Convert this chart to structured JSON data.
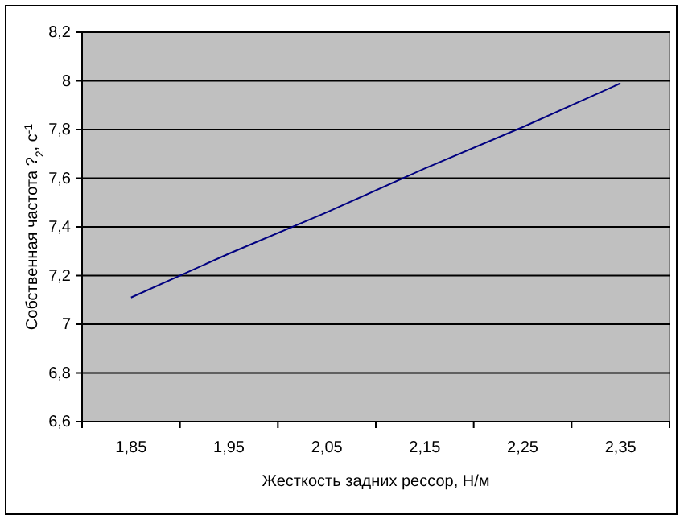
{
  "chart_data": {
    "type": "line",
    "xlabel": "Жесткость задних рессор, Н/м",
    "ylabel": "Собственная частота ?$_{2}$, с$^{-1}$",
    "categories": [
      "1,85",
      "1,95",
      "2,05",
      "2,15",
      "2,25",
      "2,35"
    ],
    "series": [
      {
        "color": "#000080",
        "values": [
          7.11,
          7.29,
          7.46,
          7.64,
          7.81,
          7.99
        ]
      }
    ],
    "ylim": [
      6.6,
      8.2
    ],
    "yticks": [
      {
        "value": 6.6,
        "label": "6,6"
      },
      {
        "value": 6.8,
        "label": "6,8"
      },
      7,
      {
        "value": 7.2,
        "label": "7,2"
      },
      {
        "value": 7.4,
        "label": "7,4"
      },
      {
        "value": 7.6,
        "label": "7,6"
      },
      {
        "value": 7.8,
        "label": "7,8"
      },
      8,
      {
        "value": 8.2,
        "label": "8,2"
      }
    ],
    "grid": "y",
    "marker": "none"
  }
}
